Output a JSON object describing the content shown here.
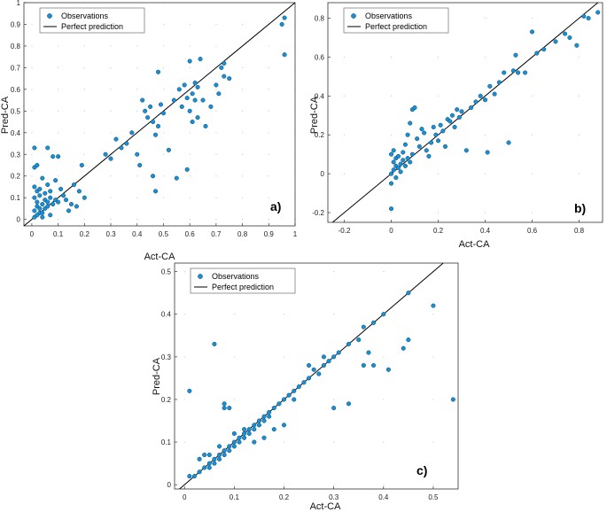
{
  "colors": {
    "marker_fill": "#1a8fd1",
    "marker_stroke": "#0b4a78",
    "line": "#000000",
    "axis": "#333333"
  },
  "legend": {
    "observations": "Observations",
    "perfect": "Perfect prediction"
  },
  "chart_data": [
    {
      "type": "scatter",
      "panel_label": "a)",
      "xlabel": "Act-CA",
      "ylabel": "Pred-CA",
      "xlim": [
        -0.03,
        1.0
      ],
      "ylim": [
        -0.03,
        1.0
      ],
      "xticks": [
        0,
        0.1,
        0.2,
        0.3,
        0.4,
        0.5,
        0.6,
        0.7,
        0.8,
        0.9,
        1
      ],
      "yticks": [
        0,
        0.1,
        0.2,
        0.3,
        0.4,
        0.5,
        0.6,
        0.7,
        0.8,
        0.9,
        1
      ],
      "tick_labels_x": [
        "0",
        "0.1",
        "0.2",
        "0.3",
        "0.4",
        "0.5",
        "0.6",
        "0.7",
        "0.8",
        "0.9",
        "1"
      ],
      "tick_labels_y": [
        "0",
        "0.1",
        "0.2",
        "0.3",
        "0.4",
        "0.5",
        "0.6",
        "0.7",
        "0.8",
        "0.9",
        "1"
      ],
      "legend_position": "top-left",
      "series": [
        {
          "points": [
            [
              0.01,
              0.04
            ],
            [
              0.02,
              0.06
            ],
            [
              0.03,
              0.05
            ],
            [
              0.02,
              0.08
            ],
            [
              0.04,
              0.07
            ],
            [
              0.05,
              0.09
            ],
            [
              0.03,
              0.03
            ],
            [
              0.06,
              0.06
            ],
            [
              0.01,
              0.01
            ],
            [
              0.02,
              0.02
            ],
            [
              0.04,
              0.03
            ],
            [
              0.05,
              0.05
            ],
            [
              0.06,
              0.08
            ],
            [
              0.07,
              0.1
            ],
            [
              0.08,
              0.07
            ],
            [
              0.09,
              0.09
            ],
            [
              0.1,
              0.08
            ],
            [
              0.03,
              0.11
            ],
            [
              0.02,
              0.13
            ],
            [
              0.01,
              0.15
            ],
            [
              0.01,
              0.24
            ],
            [
              0.02,
              0.25
            ],
            [
              0.01,
              0.33
            ],
            [
              0.06,
              0.33
            ],
            [
              0.08,
              0.29
            ],
            [
              0.1,
              0.29
            ],
            [
              0.04,
              0.19
            ],
            [
              0.06,
              0.16
            ],
            [
              0.09,
              0.18
            ],
            [
              0.12,
              0.11
            ],
            [
              0.11,
              0.14
            ],
            [
              0.13,
              0.09
            ],
            [
              0.15,
              0.07
            ],
            [
              0.17,
              0.06
            ],
            [
              0.19,
              0.25
            ],
            [
              0.2,
              0.1
            ],
            [
              0.14,
              0.04
            ],
            [
              0.04,
              0.01
            ],
            [
              0.07,
              0.02
            ],
            [
              0.01,
              0.1
            ],
            [
              0.03,
              0.14
            ],
            [
              0.05,
              0.12
            ],
            [
              0.07,
              0.13
            ],
            [
              0.16,
              0.16
            ],
            [
              0.18,
              0.13
            ],
            [
              0.28,
              0.3
            ],
            [
              0.3,
              0.28
            ],
            [
              0.32,
              0.37
            ],
            [
              0.34,
              0.33
            ],
            [
              0.36,
              0.35
            ],
            [
              0.38,
              0.4
            ],
            [
              0.4,
              0.3
            ],
            [
              0.41,
              0.25
            ],
            [
              0.42,
              0.55
            ],
            [
              0.43,
              0.5
            ],
            [
              0.44,
              0.47
            ],
            [
              0.45,
              0.52
            ],
            [
              0.46,
              0.45
            ],
            [
              0.46,
              0.2
            ],
            [
              0.47,
              0.13
            ],
            [
              0.47,
              0.39
            ],
            [
              0.48,
              0.68
            ],
            [
              0.48,
              0.43
            ],
            [
              0.49,
              0.53
            ],
            [
              0.5,
              0.49
            ],
            [
              0.52,
              0.32
            ],
            [
              0.54,
              0.55
            ],
            [
              0.55,
              0.19
            ],
            [
              0.56,
              0.6
            ],
            [
              0.57,
              0.52
            ],
            [
              0.58,
              0.62
            ],
            [
              0.59,
              0.56
            ],
            [
              0.59,
              0.23
            ],
            [
              0.6,
              0.73
            ],
            [
              0.6,
              0.5
            ],
            [
              0.61,
              0.58
            ],
            [
              0.61,
              0.45
            ],
            [
              0.62,
              0.63
            ],
            [
              0.62,
              0.55
            ],
            [
              0.63,
              0.61
            ],
            [
              0.63,
              0.47
            ],
            [
              0.64,
              0.74
            ],
            [
              0.65,
              0.55
            ],
            [
              0.66,
              0.43
            ],
            [
              0.68,
              0.52
            ],
            [
              0.7,
              0.62
            ],
            [
              0.71,
              0.58
            ],
            [
              0.72,
              0.7
            ],
            [
              0.73,
              0.72
            ],
            [
              0.73,
              0.66
            ],
            [
              0.75,
              0.65
            ],
            [
              0.95,
              0.9
            ],
            [
              0.96,
              0.93
            ],
            [
              0.96,
              0.76
            ]
          ]
        }
      ]
    },
    {
      "type": "scatter",
      "panel_label": "b)",
      "xlabel": "Act-CA",
      "ylabel": "Pred-CA",
      "xlim": [
        -0.27,
        0.9
      ],
      "ylim": [
        -0.25,
        0.88
      ],
      "xticks": [
        -0.2,
        0,
        0.2,
        0.4,
        0.6,
        0.8
      ],
      "yticks": [
        -0.2,
        0,
        0.2,
        0.4,
        0.6,
        0.8
      ],
      "tick_labels_x": [
        "-0.2",
        "0",
        "0.2",
        "0.4",
        "0.6",
        "0.8"
      ],
      "tick_labels_y": [
        "-0.2",
        "0",
        "0.2",
        "0.4",
        "0.6",
        "0.8"
      ],
      "legend_position": "top-left",
      "series": [
        {
          "points": [
            [
              0.0,
              0.0
            ],
            [
              0.01,
              0.02
            ],
            [
              0.02,
              0.04
            ],
            [
              0.01,
              0.06
            ],
            [
              0.03,
              0.03
            ],
            [
              0.02,
              0.08
            ],
            [
              0.04,
              0.05
            ],
            [
              0.05,
              0.07
            ],
            [
              0.0,
              0.1
            ],
            [
              0.01,
              0.12
            ],
            [
              0.03,
              0.09
            ],
            [
              0.04,
              0.01
            ],
            [
              0.06,
              0.04
            ],
            [
              0.07,
              0.08
            ],
            [
              0.05,
              0.11
            ],
            [
              0.02,
              -0.02
            ],
            [
              0.0,
              -0.05
            ],
            [
              0.0,
              -0.18
            ],
            [
              0.08,
              0.06
            ],
            [
              0.09,
              0.1
            ],
            [
              0.06,
              0.15
            ],
            [
              0.07,
              0.2
            ],
            [
              0.08,
              0.26
            ],
            [
              0.09,
              0.33
            ],
            [
              0.1,
              0.34
            ],
            [
              0.11,
              0.18
            ],
            [
              0.12,
              0.14
            ],
            [
              0.13,
              0.23
            ],
            [
              0.14,
              0.21
            ],
            [
              0.15,
              0.12
            ],
            [
              0.16,
              0.09
            ],
            [
              0.17,
              0.16
            ],
            [
              0.18,
              0.24
            ],
            [
              0.19,
              0.2
            ],
            [
              0.2,
              0.17
            ],
            [
              0.21,
              0.25
            ],
            [
              0.22,
              0.22
            ],
            [
              0.23,
              0.14
            ],
            [
              0.24,
              0.28
            ],
            [
              0.25,
              0.27
            ],
            [
              0.26,
              0.3
            ],
            [
              0.27,
              0.24
            ],
            [
              0.28,
              0.33
            ],
            [
              0.29,
              0.29
            ],
            [
              0.3,
              0.32
            ],
            [
              0.32,
              0.12
            ],
            [
              0.34,
              0.34
            ],
            [
              0.36,
              0.37
            ],
            [
              0.38,
              0.4
            ],
            [
              0.4,
              0.38
            ],
            [
              0.41,
              0.11
            ],
            [
              0.42,
              0.45
            ],
            [
              0.44,
              0.41
            ],
            [
              0.46,
              0.47
            ],
            [
              0.48,
              0.52
            ],
            [
              0.5,
              0.16
            ],
            [
              0.52,
              0.53
            ],
            [
              0.53,
              0.61
            ],
            [
              0.54,
              0.52
            ],
            [
              0.57,
              0.52
            ],
            [
              0.6,
              0.73
            ],
            [
              0.62,
              0.62
            ],
            [
              0.65,
              0.64
            ],
            [
              0.7,
              0.68
            ],
            [
              0.74,
              0.72
            ],
            [
              0.76,
              0.7
            ],
            [
              0.79,
              0.66
            ],
            [
              0.82,
              0.81
            ],
            [
              0.84,
              0.8
            ],
            [
              0.88,
              0.83
            ]
          ]
        }
      ]
    },
    {
      "type": "scatter",
      "panel_label": "c)",
      "xlabel": "Act-CA",
      "ylabel": "Pred-CA",
      "xlim": [
        -0.02,
        0.55
      ],
      "ylim": [
        -0.01,
        0.52
      ],
      "xticks": [
        0,
        0.1,
        0.2,
        0.3,
        0.4,
        0.5
      ],
      "yticks": [
        0,
        0.1,
        0.2,
        0.3,
        0.4,
        0.5
      ],
      "tick_labels_x": [
        "0",
        "0.1",
        "0.2",
        "0.3",
        "0.4",
        "0.5"
      ],
      "tick_labels_y": [
        "0",
        "0.1",
        "0.2",
        "0.3",
        "0.4",
        "0.5"
      ],
      "legend_position": "top-left",
      "series": [
        {
          "points": [
            [
              0.01,
              0.02
            ],
            [
              0.02,
              0.02
            ],
            [
              0.03,
              0.03
            ],
            [
              0.04,
              0.04
            ],
            [
              0.05,
              0.05
            ],
            [
              0.05,
              0.04
            ],
            [
              0.06,
              0.06
            ],
            [
              0.06,
              0.05
            ],
            [
              0.07,
              0.07
            ],
            [
              0.07,
              0.06
            ],
            [
              0.08,
              0.08
            ],
            [
              0.08,
              0.07
            ],
            [
              0.09,
              0.09
            ],
            [
              0.09,
              0.08
            ],
            [
              0.1,
              0.1
            ],
            [
              0.1,
              0.09
            ],
            [
              0.11,
              0.11
            ],
            [
              0.11,
              0.1
            ],
            [
              0.12,
              0.12
            ],
            [
              0.12,
              0.11
            ],
            [
              0.13,
              0.13
            ],
            [
              0.13,
              0.12
            ],
            [
              0.14,
              0.14
            ],
            [
              0.14,
              0.13
            ],
            [
              0.15,
              0.15
            ],
            [
              0.15,
              0.14
            ],
            [
              0.16,
              0.16
            ],
            [
              0.16,
              0.15
            ],
            [
              0.17,
              0.17
            ],
            [
              0.17,
              0.16
            ],
            [
              0.18,
              0.18
            ],
            [
              0.19,
              0.19
            ],
            [
              0.2,
              0.2
            ],
            [
              0.21,
              0.21
            ],
            [
              0.22,
              0.22
            ],
            [
              0.23,
              0.23
            ],
            [
              0.24,
              0.24
            ],
            [
              0.25,
              0.25
            ],
            [
              0.26,
              0.27
            ],
            [
              0.27,
              0.26
            ],
            [
              0.28,
              0.28
            ],
            [
              0.29,
              0.29
            ],
            [
              0.3,
              0.3
            ],
            [
              0.31,
              0.31
            ],
            [
              0.33,
              0.33
            ],
            [
              0.35,
              0.34
            ],
            [
              0.36,
              0.37
            ],
            [
              0.38,
              0.38
            ],
            [
              0.4,
              0.4
            ],
            [
              0.41,
              0.27
            ],
            [
              0.37,
              0.31
            ],
            [
              0.38,
              0.28
            ],
            [
              0.45,
              0.34
            ],
            [
              0.44,
              0.32
            ],
            [
              0.45,
              0.45
            ],
            [
              0.5,
              0.42
            ],
            [
              0.54,
              0.2
            ],
            [
              0.3,
              0.18
            ],
            [
              0.33,
              0.19
            ],
            [
              0.36,
              0.28
            ],
            [
              0.01,
              0.22
            ],
            [
              0.06,
              0.33
            ],
            [
              0.08,
              0.18
            ],
            [
              0.08,
              0.19
            ],
            [
              0.09,
              0.18
            ],
            [
              0.04,
              0.07
            ],
            [
              0.03,
              0.06
            ],
            [
              0.05,
              0.07
            ],
            [
              0.07,
              0.09
            ],
            [
              0.12,
              0.13
            ],
            [
              0.18,
              0.13
            ],
            [
              0.2,
              0.14
            ],
            [
              0.22,
              0.2
            ],
            [
              0.1,
              0.12
            ],
            [
              0.14,
              0.1
            ],
            [
              0.16,
              0.11
            ],
            [
              0.25,
              0.28
            ],
            [
              0.28,
              0.3
            ]
          ]
        }
      ]
    }
  ]
}
